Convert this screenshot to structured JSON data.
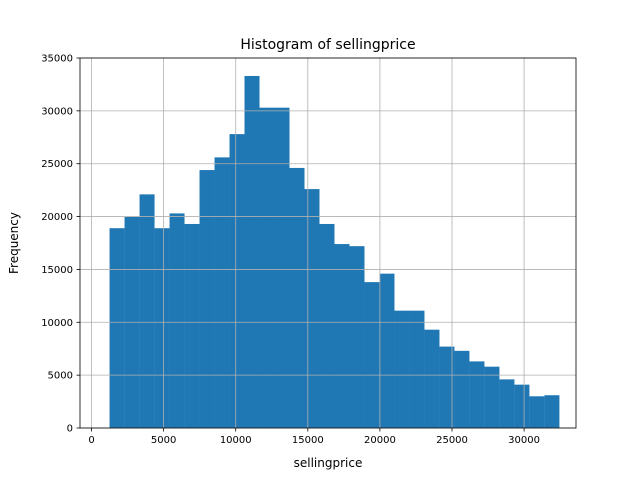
{
  "chart_data": {
    "type": "bar",
    "title": "Histogram of sellingprice",
    "xlabel": "sellingprice",
    "ylabel": "Frequency",
    "xlim": [
      -800,
      33600
    ],
    "ylim": [
      0,
      35000
    ],
    "grid": true,
    "bar_color": "#1f77b4",
    "grid_color": "#b0b0b0",
    "xticks": [
      0,
      5000,
      10000,
      15000,
      20000,
      25000,
      30000
    ],
    "yticks": [
      0,
      5000,
      10000,
      15000,
      20000,
      25000,
      30000,
      35000
    ],
    "bins": [
      {
        "x0": 1250,
        "x1": 2290,
        "value": 18900
      },
      {
        "x0": 2290,
        "x1": 3330,
        "value": 20000
      },
      {
        "x0": 3330,
        "x1": 4370,
        "value": 22100
      },
      {
        "x0": 4370,
        "x1": 5410,
        "value": 18900
      },
      {
        "x0": 5410,
        "x1": 6450,
        "value": 20300
      },
      {
        "x0": 6450,
        "x1": 7490,
        "value": 19300
      },
      {
        "x0": 7490,
        "x1": 8530,
        "value": 24400
      },
      {
        "x0": 8530,
        "x1": 9570,
        "value": 25600
      },
      {
        "x0": 9570,
        "x1": 10610,
        "value": 27800
      },
      {
        "x0": 10610,
        "x1": 11650,
        "value": 33300
      },
      {
        "x0": 11650,
        "x1": 12690,
        "value": 30300
      },
      {
        "x0": 12690,
        "x1": 13730,
        "value": 30300
      },
      {
        "x0": 13730,
        "x1": 14770,
        "value": 24600
      },
      {
        "x0": 14770,
        "x1": 15810,
        "value": 22600
      },
      {
        "x0": 15810,
        "x1": 16850,
        "value": 19300
      },
      {
        "x0": 16850,
        "x1": 17890,
        "value": 17400
      },
      {
        "x0": 17890,
        "x1": 18930,
        "value": 17200
      },
      {
        "x0": 18930,
        "x1": 19970,
        "value": 13800
      },
      {
        "x0": 19970,
        "x1": 21010,
        "value": 14600
      },
      {
        "x0": 21010,
        "x1": 22050,
        "value": 11100
      },
      {
        "x0": 22050,
        "x1": 23090,
        "value": 11100
      },
      {
        "x0": 23090,
        "x1": 24130,
        "value": 9300
      },
      {
        "x0": 24130,
        "x1": 25170,
        "value": 7700
      },
      {
        "x0": 25170,
        "x1": 26210,
        "value": 7300
      },
      {
        "x0": 26210,
        "x1": 27250,
        "value": 6300
      },
      {
        "x0": 27250,
        "x1": 28290,
        "value": 5800
      },
      {
        "x0": 28290,
        "x1": 29330,
        "value": 4600
      },
      {
        "x0": 29330,
        "x1": 30370,
        "value": 4100
      },
      {
        "x0": 30370,
        "x1": 31410,
        "value": 3000
      },
      {
        "x0": 31410,
        "x1": 32450,
        "value": 3100
      }
    ]
  }
}
